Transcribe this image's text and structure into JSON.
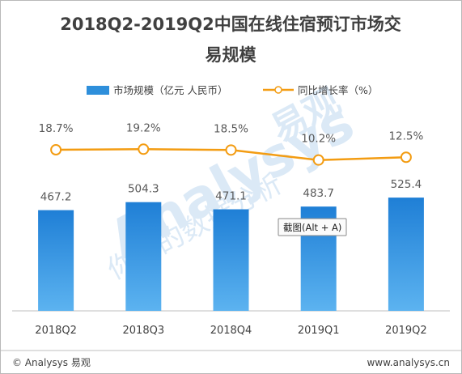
{
  "chart_data": {
    "type": "bar",
    "title_lines": [
      "2018Q2-2019Q2中国在线住宿预订市场交",
      "易规模"
    ],
    "categories": [
      "2018Q2",
      "2018Q3",
      "2018Q4",
      "2019Q1",
      "2019Q2"
    ],
    "series": [
      {
        "name": "市场规模（亿元 人民币）",
        "type": "bar",
        "axis": "left",
        "values": [
          467.2,
          504.3,
          471.1,
          483.7,
          525.4
        ],
        "labels": [
          "467.2",
          "504.3",
          "471.1",
          "483.7",
          "525.4"
        ],
        "color": "#2e8fdb"
      },
      {
        "name": "同比增长率（%）",
        "type": "line",
        "axis": "right",
        "values": [
          18.7,
          19.2,
          18.5,
          10.2,
          12.5
        ],
        "labels": [
          "18.7%",
          "19.2%",
          "18.5%",
          "10.2%",
          "12.5%"
        ],
        "color": "#f39c12"
      }
    ],
    "ylim_left": [
      0,
      950
    ],
    "ylim_right": [
      -115,
      55
    ],
    "grid": false,
    "legend_position": "top"
  },
  "footer": {
    "left": "© Analysys 易观",
    "right": "www.analysys.cn"
  },
  "watermark": {
    "brand_en": "Analysys",
    "brand_cn": "易观",
    "slogan": "你要的数据分析"
  },
  "tooltip": {
    "text": "截图(Alt + A)"
  }
}
